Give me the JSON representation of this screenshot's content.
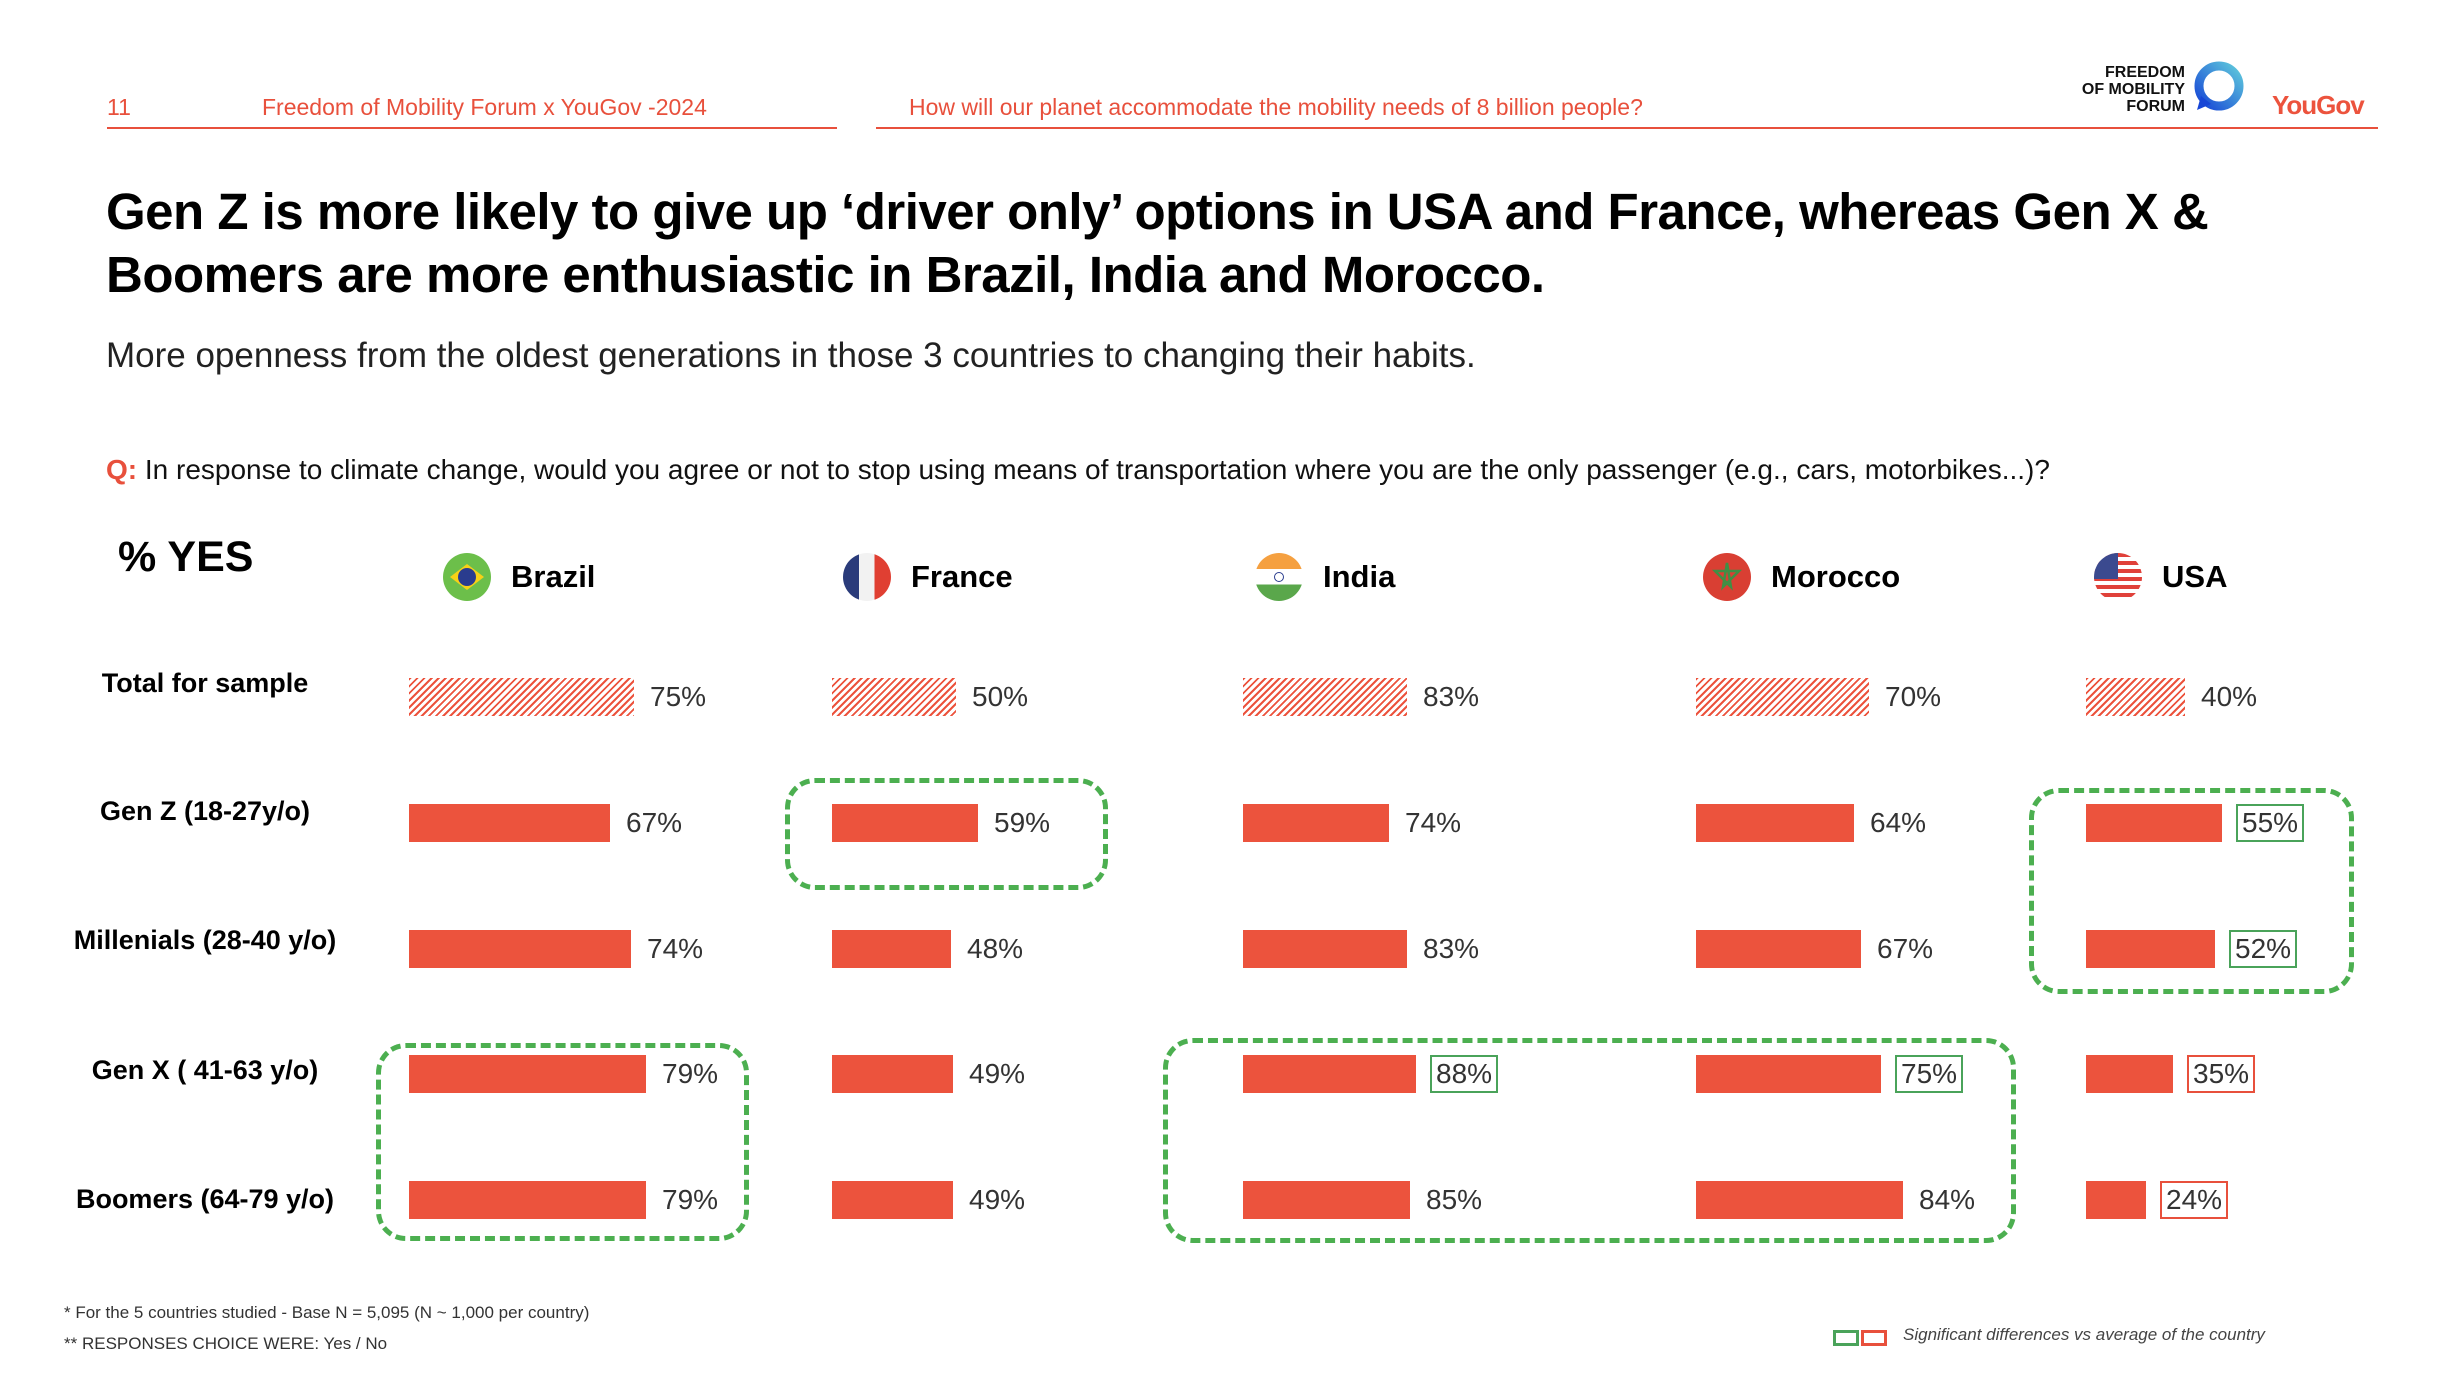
{
  "header": {
    "page_number": "11",
    "left_caption": "Freedom of Mobility Forum x YouGov -2024",
    "right_caption": "How will our planet accommodate the mobility needs of 8 billion people?",
    "logo_fmf_lines": [
      "FREEDOM",
      "OF MOBILITY",
      "FORUM"
    ],
    "logo_yougov": "YouGov"
  },
  "title_line1": "Gen Z is more likely to give up ‘driver only’ options in USA and France, whereas Gen X &",
  "title_line2": "Boomers are more enthusiastic in Brazil, India and Morocco.",
  "subtitle": "More openness from the oldest generations in those 3 countries to changing their habits.",
  "question": {
    "prefix": "Q:",
    "text": " In response to climate change, would you agree or not to stop using means of transportation where you are the only passenger (e.g., cars, motorbikes...)?"
  },
  "colors": {
    "accent": "#ec533d",
    "significant_high": "#4aa35a",
    "significant_low": "#e8503c"
  },
  "chart_data": {
    "type": "bar",
    "title": "% YES",
    "orientation": "horizontal",
    "unit": "%",
    "categories": [
      "Total for sample",
      "Gen Z (18-27y/o)",
      "Millenials (28-40 y/o)",
      "Gen X ( 41-63 y/o)",
      "Boomers (64-79 y/o)"
    ],
    "series": [
      {
        "name": "Brazil",
        "flag": "brazil-flag",
        "values": [
          75,
          67,
          74,
          79,
          79
        ],
        "significant": [
          null,
          null,
          null,
          null,
          null
        ]
      },
      {
        "name": "France",
        "flag": "france-flag",
        "values": [
          50,
          59,
          48,
          49,
          49
        ],
        "significant": [
          null,
          null,
          null,
          null,
          null
        ]
      },
      {
        "name": "India",
        "flag": "india-flag",
        "values": [
          83,
          74,
          83,
          88,
          85
        ],
        "significant": [
          null,
          null,
          null,
          "high",
          null
        ]
      },
      {
        "name": "Morocco",
        "flag": "morocco-flag",
        "values": [
          70,
          64,
          67,
          75,
          84
        ],
        "significant": [
          null,
          null,
          null,
          "high",
          null
        ]
      },
      {
        "name": "USA",
        "flag": "usa-flag",
        "values": [
          40,
          55,
          52,
          35,
          24
        ],
        "significant": [
          null,
          "high",
          "high",
          "low",
          "low"
        ]
      }
    ],
    "labels": [
      [
        "75%",
        "67%",
        "74%",
        "79%",
        "79%"
      ],
      [
        "50%",
        "59%",
        "48%",
        "49%",
        "49%"
      ],
      [
        "83%",
        "74%",
        "83%",
        "88%",
        "85%"
      ],
      [
        "70%",
        "64%",
        "67%",
        "75%",
        "84%"
      ],
      [
        "40%",
        "55%",
        "52%",
        "35%",
        "24%"
      ]
    ],
    "highlight_groups": [
      {
        "country": "Brazil",
        "rows": [
          "Gen X ( 41-63 y/o)",
          "Boomers (64-79 y/o)"
        ]
      },
      {
        "country": "France",
        "rows": [
          "Gen Z (18-27y/o)"
        ]
      },
      {
        "country": "India + Morocco",
        "rows": [
          "Gen X ( 41-63 y/o)",
          "Boomers (64-79 y/o)"
        ]
      },
      {
        "country": "USA",
        "rows": [
          "Gen Z (18-27y/o)",
          "Millenials (28-40 y/o)"
        ]
      }
    ],
    "xlim": [
      0,
      100
    ]
  },
  "footnotes": {
    "note1": "* For the 5 countries studied - Base N = 5,095 (N ~ 1,000 per country)",
    "note2": "** RESPONSES CHOICE WERE: Yes / No",
    "legend": "Significant differences vs average of the  country"
  }
}
